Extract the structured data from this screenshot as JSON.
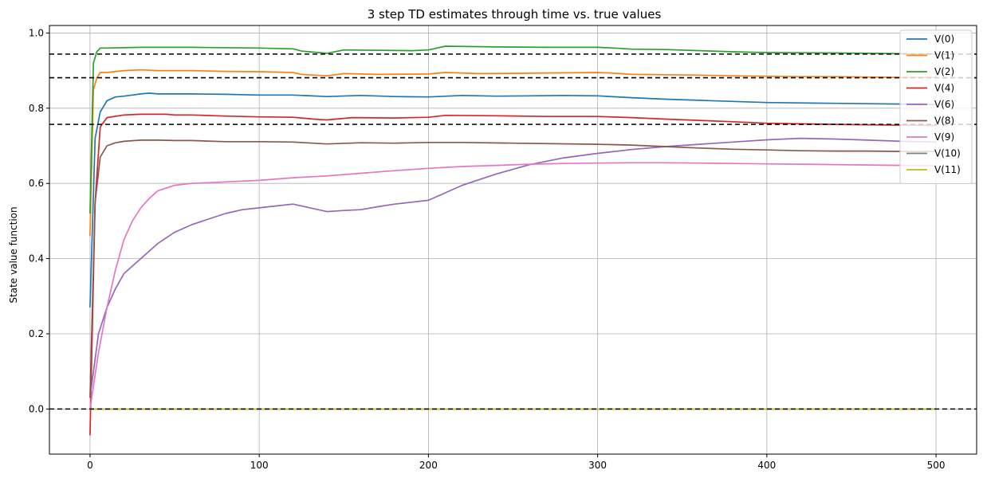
{
  "chart_data": {
    "type": "line",
    "title": "3 step TD estimates through time vs. true values",
    "xlabel": "",
    "ylabel": "State value function",
    "xlim": [
      -24,
      524
    ],
    "ylim": [
      -0.12,
      1.02
    ],
    "xticks": [
      0,
      100,
      200,
      300,
      400,
      500
    ],
    "xtick_labels": [
      "0",
      "100",
      "200",
      "300",
      "400",
      "500"
    ],
    "yticks": [
      0.0,
      0.2,
      0.4,
      0.6,
      0.8,
      1.0
    ],
    "ytick_labels": [
      "0.0",
      "0.2",
      "0.4",
      "0.6",
      "0.8",
      "1.0"
    ],
    "grid": true,
    "legend_position": "top-right",
    "reference_lines": [
      0.944,
      0.881,
      0.757,
      0.0
    ],
    "series": [
      {
        "name": "V(0)",
        "color": "#1f77b4",
        "x": [
          0,
          3,
          6,
          10,
          15,
          20,
          30,
          35,
          40,
          60,
          80,
          100,
          120,
          140,
          160,
          180,
          200,
          220,
          240,
          260,
          280,
          300,
          320,
          340,
          360,
          380,
          400,
          420,
          440,
          460,
          480,
          500
        ],
        "y": [
          0.27,
          0.72,
          0.79,
          0.82,
          0.83,
          0.832,
          0.838,
          0.84,
          0.838,
          0.838,
          0.837,
          0.835,
          0.835,
          0.831,
          0.834,
          0.831,
          0.83,
          0.834,
          0.832,
          0.833,
          0.834,
          0.833,
          0.828,
          0.824,
          0.821,
          0.818,
          0.815,
          0.814,
          0.813,
          0.812,
          0.811,
          0.81
        ]
      },
      {
        "name": "V(1)",
        "color": "#ff7f0e",
        "x": [
          0,
          2,
          4,
          6,
          10,
          20,
          30,
          40,
          60,
          80,
          100,
          120,
          125,
          140,
          150,
          170,
          200,
          210,
          230,
          260,
          300,
          310,
          320,
          340,
          360,
          380,
          400,
          420,
          440,
          460,
          480,
          500
        ],
        "y": [
          0.46,
          0.85,
          0.88,
          0.895,
          0.895,
          0.9,
          0.902,
          0.9,
          0.9,
          0.898,
          0.897,
          0.895,
          0.89,
          0.886,
          0.892,
          0.89,
          0.891,
          0.895,
          0.892,
          0.893,
          0.895,
          0.893,
          0.89,
          0.889,
          0.888,
          0.886,
          0.885,
          0.884,
          0.884,
          0.883,
          0.882,
          0.882
        ]
      },
      {
        "name": "V(2)",
        "color": "#2ca02c",
        "x": [
          0,
          2,
          4,
          6,
          10,
          30,
          60,
          100,
          120,
          125,
          140,
          150,
          190,
          200,
          210,
          240,
          270,
          300,
          310,
          320,
          340,
          380,
          400,
          440,
          480,
          500
        ],
        "y": [
          0.52,
          0.92,
          0.95,
          0.96,
          0.96,
          0.962,
          0.962,
          0.96,
          0.958,
          0.952,
          0.946,
          0.955,
          0.953,
          0.955,
          0.965,
          0.963,
          0.962,
          0.962,
          0.96,
          0.957,
          0.956,
          0.95,
          0.948,
          0.947,
          0.945,
          0.944
        ]
      },
      {
        "name": "V(4)",
        "color": "#d62728",
        "x": [
          0,
          3,
          6,
          10,
          20,
          30,
          45,
          50,
          60,
          80,
          100,
          120,
          135,
          140,
          155,
          180,
          200,
          210,
          240,
          270,
          300,
          320,
          340,
          380,
          400,
          440,
          480,
          500
        ],
        "y": [
          -0.07,
          0.55,
          0.75,
          0.775,
          0.782,
          0.784,
          0.784,
          0.782,
          0.782,
          0.779,
          0.777,
          0.776,
          0.77,
          0.769,
          0.775,
          0.774,
          0.776,
          0.781,
          0.78,
          0.778,
          0.778,
          0.775,
          0.771,
          0.764,
          0.76,
          0.757,
          0.755,
          0.754
        ]
      },
      {
        "name": "V(6)",
        "color": "#9467bd",
        "x": [
          0,
          5,
          10,
          15,
          20,
          25,
          30,
          40,
          50,
          60,
          70,
          80,
          90,
          100,
          110,
          120,
          130,
          140,
          150,
          160,
          170,
          180,
          190,
          200,
          210,
          220,
          240,
          260,
          280,
          300,
          320,
          340,
          360,
          380,
          400,
          420,
          440,
          460,
          480,
          500
        ],
        "y": [
          0.03,
          0.2,
          0.27,
          0.32,
          0.36,
          0.38,
          0.4,
          0.44,
          0.47,
          0.49,
          0.505,
          0.52,
          0.53,
          0.535,
          0.54,
          0.545,
          0.535,
          0.525,
          0.528,
          0.53,
          0.538,
          0.545,
          0.55,
          0.555,
          0.575,
          0.595,
          0.625,
          0.65,
          0.668,
          0.68,
          0.69,
          0.698,
          0.704,
          0.71,
          0.716,
          0.72,
          0.718,
          0.715,
          0.712,
          0.71
        ]
      },
      {
        "name": "V(8)",
        "color": "#8c564b",
        "x": [
          0,
          3,
          6,
          10,
          15,
          20,
          30,
          40,
          50,
          60,
          80,
          100,
          120,
          140,
          160,
          180,
          200,
          220,
          250,
          300,
          320,
          340,
          360,
          380,
          400,
          420,
          440,
          460,
          480,
          500
        ],
        "y": [
          0.03,
          0.55,
          0.67,
          0.7,
          0.708,
          0.712,
          0.715,
          0.715,
          0.714,
          0.714,
          0.711,
          0.711,
          0.71,
          0.705,
          0.708,
          0.707,
          0.709,
          0.709,
          0.707,
          0.704,
          0.702,
          0.698,
          0.694,
          0.691,
          0.689,
          0.687,
          0.686,
          0.686,
          0.685,
          0.685
        ]
      },
      {
        "name": "V(9)",
        "color": "#e377c2",
        "x": [
          0,
          5,
          10,
          15,
          20,
          25,
          30,
          35,
          40,
          50,
          60,
          70,
          80,
          100,
          120,
          140,
          160,
          180,
          200,
          220,
          240,
          260,
          280,
          300,
          320,
          340,
          360,
          380,
          400,
          420,
          440,
          460,
          480,
          500
        ],
        "y": [
          0.0,
          0.15,
          0.27,
          0.37,
          0.45,
          0.5,
          0.535,
          0.56,
          0.58,
          0.595,
          0.6,
          0.602,
          0.604,
          0.608,
          0.615,
          0.62,
          0.627,
          0.634,
          0.64,
          0.645,
          0.648,
          0.651,
          0.653,
          0.654,
          0.655,
          0.655,
          0.654,
          0.653,
          0.652,
          0.651,
          0.65,
          0.649,
          0.648,
          0.647
        ]
      },
      {
        "name": "V(10)",
        "color": "#7f7f7f",
        "x": [
          0,
          500
        ],
        "y": [
          0.0,
          0.0
        ]
      },
      {
        "name": "V(11)",
        "color": "#bcbd22",
        "x": [
          0,
          500
        ],
        "y": [
          0.0,
          0.0
        ]
      }
    ]
  }
}
